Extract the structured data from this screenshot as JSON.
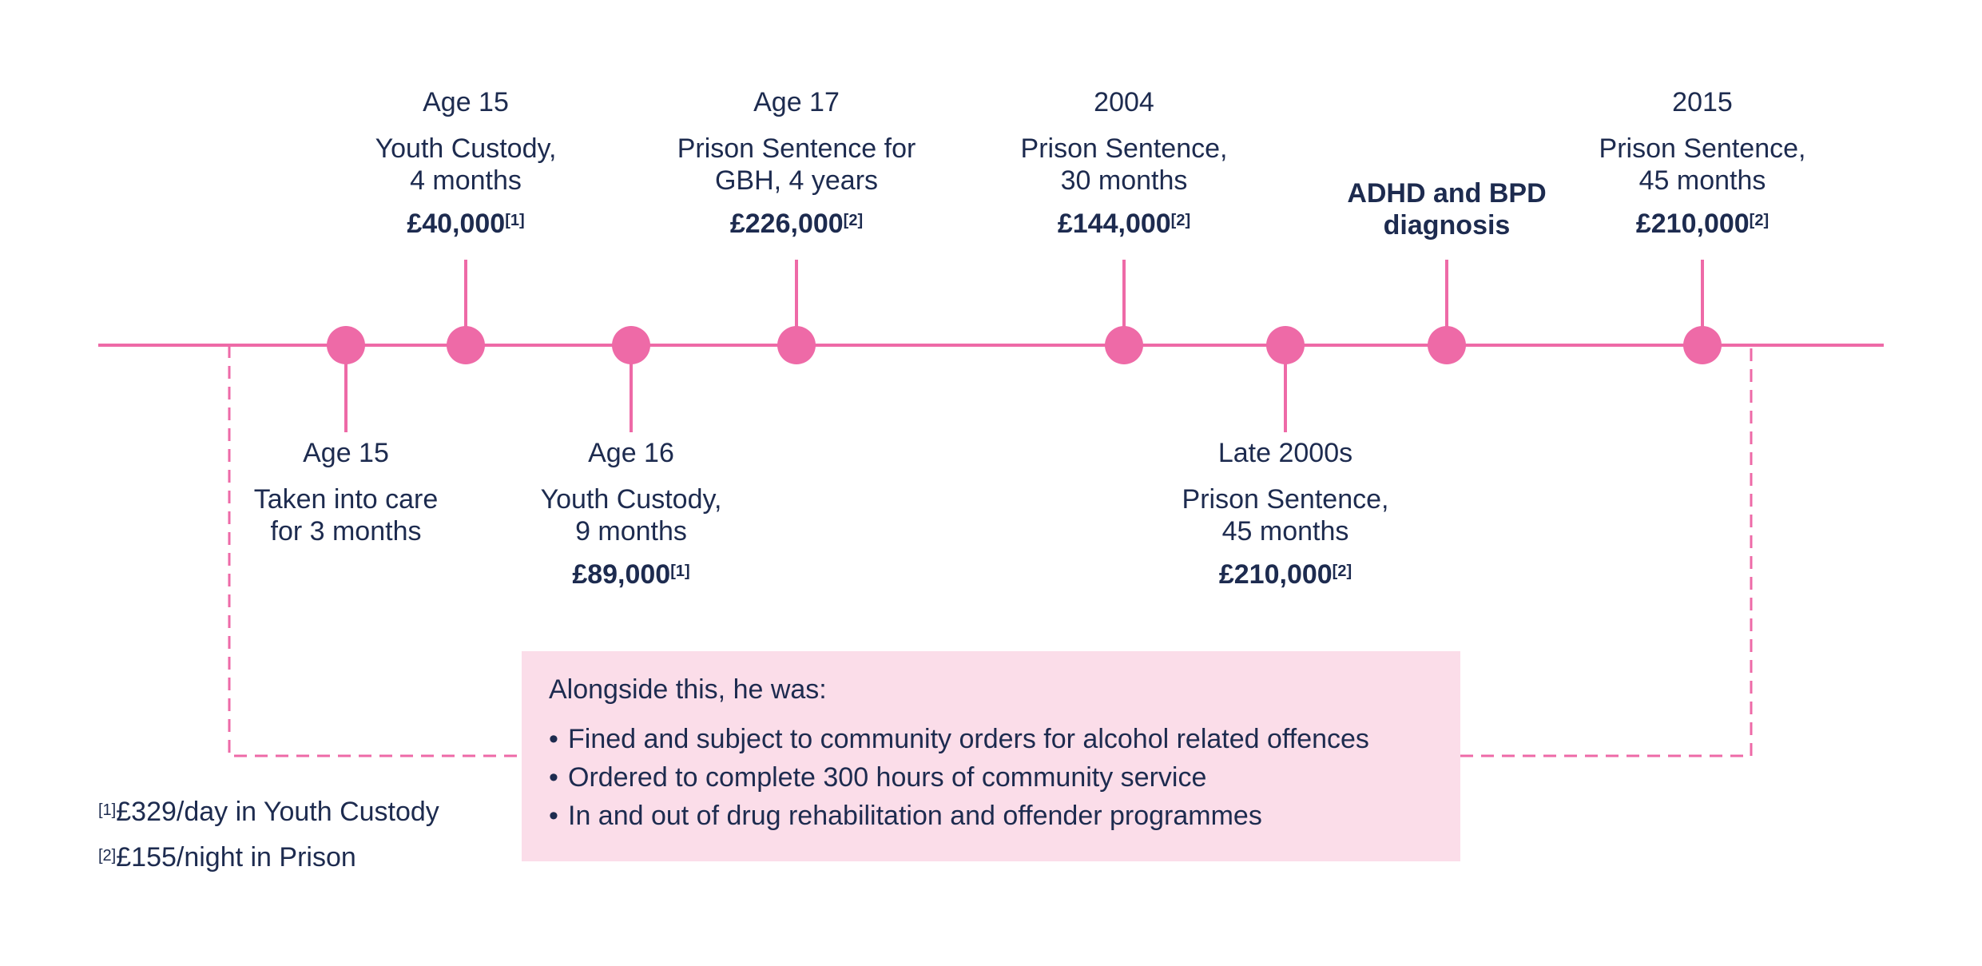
{
  "colors": {
    "accent": "#ee6aa7",
    "text": "#1d2b4f",
    "callout_bg": "#fbdde9"
  },
  "timeline": {
    "events_above": [
      {
        "when": "Age 15",
        "desc": "Youth Custody,\n4 months",
        "cost": "£40,000",
        "ref": "[1]"
      },
      {
        "when": "Age 17",
        "desc": "Prison Sentence for\nGBH, 4 years",
        "cost": "£226,000",
        "ref": "[2]"
      },
      {
        "when": "2004",
        "desc": "Prison Sentence,\n30 months",
        "cost": "£144,000",
        "ref": "[2]"
      },
      {
        "label": "ADHD and BPD\ndiagnosis"
      },
      {
        "when": "2015",
        "desc": "Prison Sentence,\n45 months",
        "cost": "£210,000",
        "ref": "[2]"
      }
    ],
    "events_below": [
      {
        "when": "Age 15",
        "desc": "Taken into care\nfor 3 months"
      },
      {
        "when": "Age 16",
        "desc": "Youth Custody,\n9 months",
        "cost": "£89,000",
        "ref": "[1]"
      },
      {
        "when": "Late 2000s",
        "desc": "Prison Sentence,\n45 months",
        "cost": "£210,000",
        "ref": "[2]"
      }
    ]
  },
  "callout": {
    "intro": "Alongside this, he was:",
    "items": [
      "Fined and subject to community orders for alcohol related offences",
      "Ordered to complete 300 hours of community service",
      "In and out of drug rehabilitation and offender programmes"
    ]
  },
  "footnotes": [
    {
      "ref": "[1]",
      "text": "£329/day in Youth Custody"
    },
    {
      "ref": "[2]",
      "text": "£155/night in Prison"
    }
  ]
}
